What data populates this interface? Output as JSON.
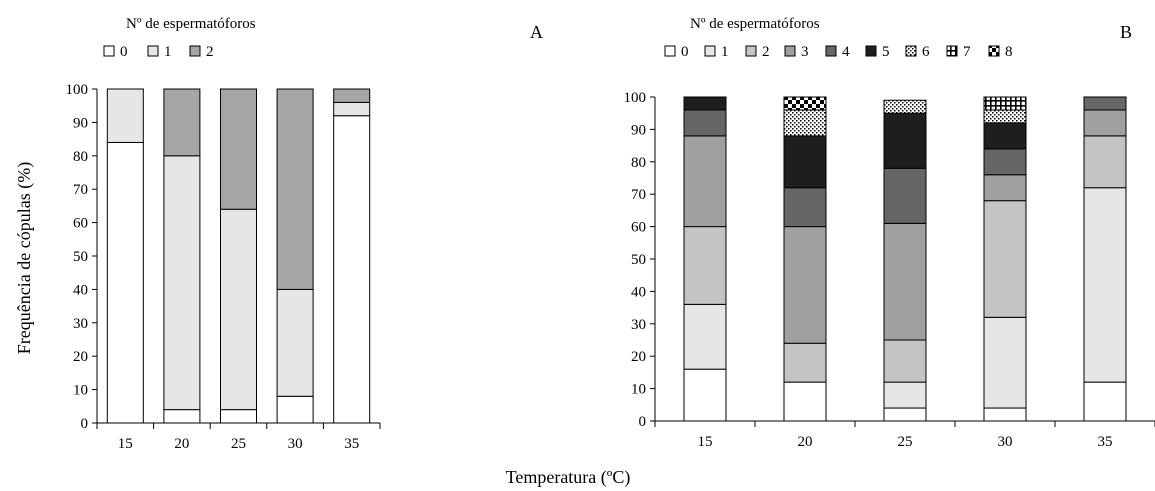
{
  "figure": {
    "shared_ylabel": "Frequência de cópulas (%)",
    "shared_xlabel": "Temperatura (ºC)"
  },
  "colors": {
    "0": "#ffffff",
    "1": "#e6e6e6",
    "2": "#c4c4c4",
    "2A": "#a6a6a6",
    "3": "#a0a0a0",
    "4": "#666666",
    "5": "#1e1e1e"
  },
  "chart_data": [
    {
      "type": "bar",
      "stacked": true,
      "panel_label": "A",
      "legend_title": "Nº de espermatóforos",
      "legend_placement": "top-left",
      "categories": [
        "15",
        "20",
        "25",
        "30",
        "35"
      ],
      "ylim": [
        0,
        100
      ],
      "yticks": [
        0,
        10,
        20,
        30,
        40,
        50,
        60,
        70,
        80,
        90,
        100
      ],
      "series": [
        {
          "name": "0",
          "fill": "solid",
          "color": "#ffffff",
          "values": [
            84,
            4,
            4,
            8,
            92
          ]
        },
        {
          "name": "1",
          "fill": "solid",
          "color": "#e6e6e6",
          "values": [
            16,
            76,
            60,
            32,
            4
          ]
        },
        {
          "name": "2",
          "fill": "solid",
          "color": "#a6a6a6",
          "values": [
            0,
            20,
            36,
            60,
            4
          ]
        }
      ]
    },
    {
      "type": "bar",
      "stacked": true,
      "panel_label": "B",
      "legend_title": "Nº de espermatóforos",
      "legend_placement": "top-left",
      "categories": [
        "15",
        "20",
        "25",
        "30",
        "35"
      ],
      "ylim": [
        0,
        100
      ],
      "yticks": [
        0,
        10,
        20,
        30,
        40,
        50,
        60,
        70,
        80,
        90,
        100
      ],
      "series": [
        {
          "name": "0",
          "fill": "solid",
          "color": "#ffffff",
          "values": [
            16,
            12,
            4,
            4,
            12
          ]
        },
        {
          "name": "1",
          "fill": "solid",
          "color": "#e6e6e6",
          "values": [
            20,
            0,
            8,
            28,
            60
          ]
        },
        {
          "name": "2",
          "fill": "solid",
          "color": "#c4c4c4",
          "values": [
            24,
            12,
            13,
            36,
            16
          ]
        },
        {
          "name": "3",
          "fill": "solid",
          "color": "#a0a0a0",
          "values": [
            28,
            36,
            36,
            8,
            8
          ]
        },
        {
          "name": "4",
          "fill": "solid",
          "color": "#666666",
          "values": [
            8,
            12,
            17,
            8,
            4
          ]
        },
        {
          "name": "5",
          "fill": "solid",
          "color": "#1e1e1e",
          "values": [
            4,
            16,
            17,
            8,
            0
          ]
        },
        {
          "name": "6",
          "fill": "dots",
          "color": "#ffffff",
          "values": [
            0,
            8,
            4,
            4,
            0
          ]
        },
        {
          "name": "7",
          "fill": "grid",
          "color": "#ffffff",
          "values": [
            0,
            0,
            0,
            4,
            0
          ]
        },
        {
          "name": "8",
          "fill": "checker",
          "color": "#ffffff",
          "values": [
            0,
            4,
            0,
            0,
            0
          ]
        }
      ]
    }
  ]
}
